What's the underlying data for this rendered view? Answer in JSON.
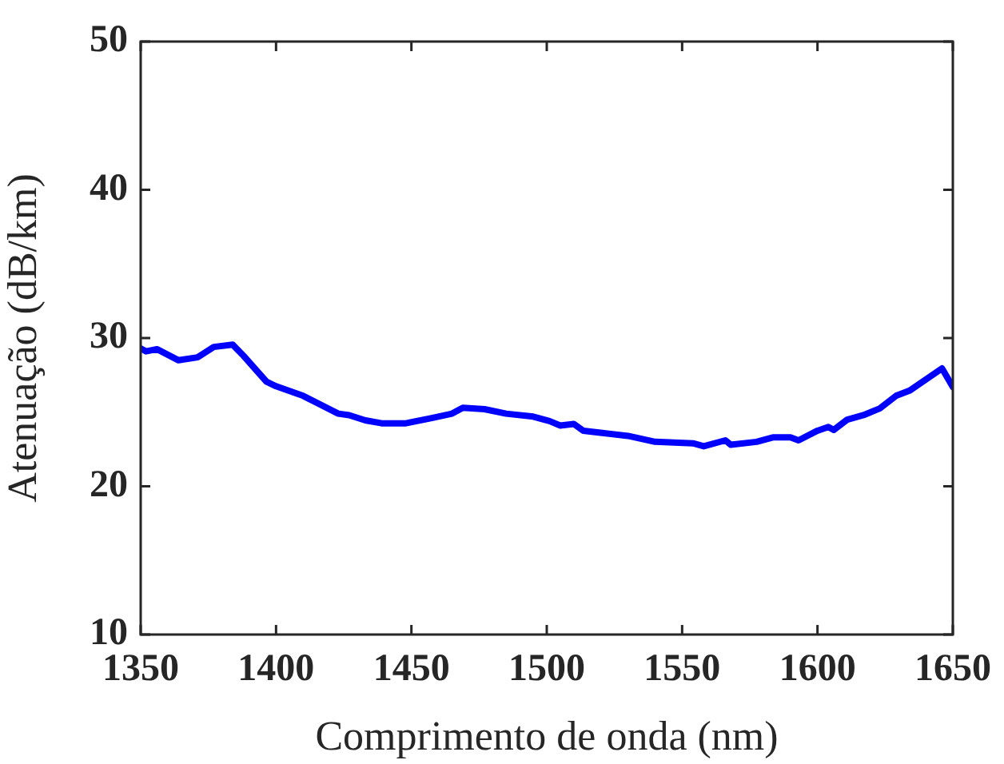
{
  "chart_data": {
    "type": "line",
    "xlabel": "Comprimento de onda (nm)",
    "ylabel": "Atenuação (dB/km)",
    "xlim": [
      1350,
      1650
    ],
    "xticks": [
      1350,
      1400,
      1450,
      1500,
      1550,
      1600,
      1650
    ],
    "ylim": [
      10,
      50
    ],
    "yticks": [
      10,
      20,
      30,
      40,
      50
    ],
    "grid": false,
    "legend": false,
    "marker": "none",
    "line_style": "solid",
    "series": [
      {
        "color": "#0000ff",
        "x": [
          1350,
          1352,
          1356,
          1364,
          1371,
          1377,
          1384,
          1388,
          1396.5,
          1400,
          1410,
          1423,
          1427,
          1433,
          1439,
          1448,
          1457.5,
          1465,
          1469,
          1477,
          1485,
          1495,
          1501,
          1505,
          1510,
          1513.5,
          1520.5,
          1530,
          1540,
          1554,
          1558,
          1566,
          1568,
          1577.5,
          1583.5,
          1590,
          1593,
          1600,
          1604,
          1606,
          1611,
          1617,
          1623,
          1629,
          1634,
          1646,
          1650
        ],
        "values": [
          29.3,
          29.1,
          29.25,
          28.5,
          28.7,
          29.4,
          29.55,
          28.8,
          27.05,
          26.75,
          26.1,
          24.9,
          24.8,
          24.45,
          24.25,
          24.25,
          24.6,
          24.9,
          25.3,
          25.2,
          24.9,
          24.7,
          24.4,
          24.1,
          24.2,
          23.75,
          23.6,
          23.4,
          23.0,
          22.9,
          22.7,
          23.1,
          22.8,
          23.0,
          23.3,
          23.3,
          23.1,
          23.75,
          24.0,
          23.8,
          24.5,
          24.8,
          25.25,
          26.1,
          26.45,
          27.95,
          26.7
        ]
      }
    ]
  }
}
